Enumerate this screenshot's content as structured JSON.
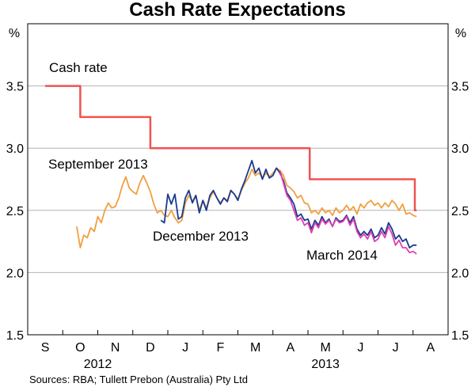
{
  "chart_data": {
    "type": "line",
    "title": "Cash Rate Expectations",
    "ylabel_left": "%",
    "ylabel_right": "%",
    "ylim": [
      1.5,
      4.0
    ],
    "yticks": [
      "1.5",
      "2.0",
      "2.5",
      "3.0",
      "3.5"
    ],
    "x_months": [
      "S",
      "O",
      "N",
      "D",
      "J",
      "F",
      "M",
      "A",
      "M",
      "J",
      "J",
      "A"
    ],
    "x_years": [
      {
        "label": "2012",
        "month_index": 1.5
      },
      {
        "label": "2013",
        "month_index": 8.0
      }
    ],
    "grid": true,
    "source": "Sources: RBA; Tullett Prebon (Australia) Pty Ltd",
    "series": [
      {
        "name": "Cash rate",
        "color": "#ef5350",
        "step": true,
        "points": [
          [
            0.0,
            3.5
          ],
          [
            1.0,
            3.5
          ],
          [
            1.0,
            3.25
          ],
          [
            3.0,
            3.25
          ],
          [
            3.0,
            3.0
          ],
          [
            7.55,
            3.0
          ],
          [
            7.55,
            2.75
          ],
          [
            10.55,
            2.75
          ],
          [
            10.55,
            2.5
          ],
          [
            10.6,
            2.5
          ]
        ]
      },
      {
        "name": "September 2013",
        "color": "#f0a040",
        "points": [
          [
            0.9,
            2.37
          ],
          [
            1.0,
            2.2
          ],
          [
            1.1,
            2.3
          ],
          [
            1.2,
            2.28
          ],
          [
            1.3,
            2.36
          ],
          [
            1.4,
            2.33
          ],
          [
            1.5,
            2.45
          ],
          [
            1.6,
            2.4
          ],
          [
            1.7,
            2.5
          ],
          [
            1.8,
            2.56
          ],
          [
            1.9,
            2.52
          ],
          [
            2.0,
            2.53
          ],
          [
            2.1,
            2.6
          ],
          [
            2.2,
            2.7
          ],
          [
            2.3,
            2.77
          ],
          [
            2.4,
            2.68
          ],
          [
            2.5,
            2.65
          ],
          [
            2.6,
            2.63
          ],
          [
            2.7,
            2.72
          ],
          [
            2.8,
            2.78
          ],
          [
            2.9,
            2.72
          ],
          [
            3.0,
            2.65
          ],
          [
            3.1,
            2.55
          ],
          [
            3.2,
            2.48
          ],
          [
            3.3,
            2.5
          ],
          [
            3.4,
            2.46
          ],
          [
            3.5,
            2.45
          ],
          [
            3.6,
            2.5
          ],
          [
            3.7,
            2.44
          ],
          [
            3.8,
            2.4
          ],
          [
            3.9,
            2.42
          ],
          [
            4.0,
            2.56
          ],
          [
            4.1,
            2.62
          ],
          [
            4.2,
            2.57
          ],
          [
            4.3,
            2.62
          ],
          [
            4.4,
            2.5
          ],
          [
            4.5,
            2.58
          ],
          [
            4.6,
            2.52
          ],
          [
            4.7,
            2.6
          ],
          [
            4.8,
            2.65
          ],
          [
            4.9,
            2.6
          ],
          [
            5.0,
            2.56
          ],
          [
            5.1,
            2.6
          ],
          [
            5.2,
            2.58
          ],
          [
            5.3,
            2.66
          ],
          [
            5.4,
            2.63
          ],
          [
            5.5,
            2.59
          ],
          [
            5.6,
            2.66
          ],
          [
            5.7,
            2.72
          ],
          [
            5.8,
            2.76
          ],
          [
            5.9,
            2.83
          ],
          [
            6.0,
            2.78
          ],
          [
            6.1,
            2.8
          ],
          [
            6.2,
            2.76
          ],
          [
            6.3,
            2.8
          ],
          [
            6.4,
            2.77
          ],
          [
            6.5,
            2.8
          ],
          [
            6.6,
            2.84
          ],
          [
            6.7,
            2.82
          ],
          [
            6.8,
            2.78
          ],
          [
            6.9,
            2.7
          ],
          [
            7.0,
            2.68
          ],
          [
            7.1,
            2.65
          ],
          [
            7.2,
            2.6
          ],
          [
            7.3,
            2.62
          ],
          [
            7.4,
            2.56
          ],
          [
            7.5,
            2.55
          ],
          [
            7.6,
            2.48
          ],
          [
            7.7,
            2.5
          ],
          [
            7.8,
            2.47
          ],
          [
            7.9,
            2.52
          ],
          [
            8.0,
            2.48
          ],
          [
            8.1,
            2.5
          ],
          [
            8.2,
            2.46
          ],
          [
            8.3,
            2.52
          ],
          [
            8.4,
            2.48
          ],
          [
            8.5,
            2.5
          ],
          [
            8.6,
            2.54
          ],
          [
            8.7,
            2.5
          ],
          [
            8.8,
            2.53
          ],
          [
            8.9,
            2.47
          ],
          [
            9.0,
            2.55
          ],
          [
            9.1,
            2.52
          ],
          [
            9.2,
            2.56
          ],
          [
            9.3,
            2.58
          ],
          [
            9.4,
            2.54
          ],
          [
            9.5,
            2.56
          ],
          [
            9.6,
            2.52
          ],
          [
            9.7,
            2.56
          ],
          [
            9.8,
            2.53
          ],
          [
            9.9,
            2.58
          ],
          [
            10.0,
            2.55
          ],
          [
            10.1,
            2.5
          ],
          [
            10.2,
            2.55
          ],
          [
            10.3,
            2.47
          ],
          [
            10.4,
            2.48
          ],
          [
            10.5,
            2.46
          ],
          [
            10.6,
            2.45
          ]
        ]
      },
      {
        "name": "December 2013",
        "color": "#1a3a8f",
        "points": [
          [
            3.3,
            2.42
          ],
          [
            3.4,
            2.4
          ],
          [
            3.5,
            2.63
          ],
          [
            3.6,
            2.55
          ],
          [
            3.7,
            2.63
          ],
          [
            3.8,
            2.43
          ],
          [
            3.9,
            2.45
          ],
          [
            4.0,
            2.6
          ],
          [
            4.1,
            2.66
          ],
          [
            4.2,
            2.56
          ],
          [
            4.3,
            2.62
          ],
          [
            4.4,
            2.48
          ],
          [
            4.5,
            2.58
          ],
          [
            4.6,
            2.5
          ],
          [
            4.7,
            2.62
          ],
          [
            4.8,
            2.66
          ],
          [
            4.9,
            2.6
          ],
          [
            5.0,
            2.55
          ],
          [
            5.1,
            2.6
          ],
          [
            5.2,
            2.57
          ],
          [
            5.3,
            2.66
          ],
          [
            5.4,
            2.63
          ],
          [
            5.5,
            2.58
          ],
          [
            5.6,
            2.67
          ],
          [
            5.7,
            2.74
          ],
          [
            5.8,
            2.82
          ],
          [
            5.9,
            2.9
          ],
          [
            6.0,
            2.8
          ],
          [
            6.1,
            2.84
          ],
          [
            6.2,
            2.75
          ],
          [
            6.3,
            2.83
          ],
          [
            6.4,
            2.76
          ],
          [
            6.5,
            2.78
          ],
          [
            6.6,
            2.84
          ],
          [
            6.7,
            2.8
          ],
          [
            6.8,
            2.74
          ],
          [
            6.9,
            2.64
          ],
          [
            7.0,
            2.6
          ],
          [
            7.1,
            2.55
          ],
          [
            7.2,
            2.45
          ],
          [
            7.3,
            2.47
          ],
          [
            7.4,
            2.42
          ],
          [
            7.5,
            2.43
          ],
          [
            7.6,
            2.35
          ],
          [
            7.7,
            2.42
          ],
          [
            7.8,
            2.38
          ],
          [
            7.9,
            2.45
          ],
          [
            8.0,
            2.4
          ],
          [
            8.1,
            2.43
          ],
          [
            8.2,
            2.37
          ],
          [
            8.3,
            2.44
          ],
          [
            8.4,
            2.41
          ],
          [
            8.5,
            2.42
          ],
          [
            8.6,
            2.46
          ],
          [
            8.7,
            2.4
          ],
          [
            8.8,
            2.45
          ],
          [
            8.9,
            2.35
          ],
          [
            9.0,
            2.3
          ],
          [
            9.1,
            2.33
          ],
          [
            9.2,
            2.3
          ],
          [
            9.3,
            2.35
          ],
          [
            9.4,
            2.28
          ],
          [
            9.5,
            2.3
          ],
          [
            9.6,
            2.36
          ],
          [
            9.7,
            2.31
          ],
          [
            9.8,
            2.4
          ],
          [
            9.9,
            2.35
          ],
          [
            10.0,
            2.27
          ],
          [
            10.1,
            2.3
          ],
          [
            10.2,
            2.25
          ],
          [
            10.3,
            2.27
          ],
          [
            10.4,
            2.2
          ],
          [
            10.5,
            2.22
          ],
          [
            10.6,
            2.22
          ]
        ]
      },
      {
        "name": "March 2014",
        "color": "#e040b0",
        "points": [
          [
            6.7,
            2.82
          ],
          [
            6.8,
            2.72
          ],
          [
            6.9,
            2.62
          ],
          [
            7.0,
            2.58
          ],
          [
            7.1,
            2.5
          ],
          [
            7.2,
            2.42
          ],
          [
            7.3,
            2.44
          ],
          [
            7.4,
            2.38
          ],
          [
            7.5,
            2.4
          ],
          [
            7.6,
            2.32
          ],
          [
            7.7,
            2.4
          ],
          [
            7.8,
            2.36
          ],
          [
            7.9,
            2.43
          ],
          [
            8.0,
            2.39
          ],
          [
            8.1,
            2.42
          ],
          [
            8.2,
            2.37
          ],
          [
            8.3,
            2.43
          ],
          [
            8.4,
            2.4
          ],
          [
            8.5,
            2.41
          ],
          [
            8.6,
            2.45
          ],
          [
            8.7,
            2.38
          ],
          [
            8.8,
            2.43
          ],
          [
            8.9,
            2.33
          ],
          [
            9.0,
            2.28
          ],
          [
            9.1,
            2.31
          ],
          [
            9.2,
            2.27
          ],
          [
            9.3,
            2.33
          ],
          [
            9.4,
            2.25
          ],
          [
            9.5,
            2.27
          ],
          [
            9.6,
            2.33
          ],
          [
            9.7,
            2.28
          ],
          [
            9.8,
            2.37
          ],
          [
            9.9,
            2.31
          ],
          [
            10.0,
            2.22
          ],
          [
            10.1,
            2.26
          ],
          [
            10.2,
            2.2
          ],
          [
            10.3,
            2.2
          ],
          [
            10.4,
            2.16
          ],
          [
            10.5,
            2.17
          ],
          [
            10.6,
            2.15
          ]
        ]
      }
    ],
    "annotations": [
      {
        "text": "Cash rate",
        "series": "Cash rate"
      },
      {
        "text": "September 2013",
        "series": "September 2013"
      },
      {
        "text": "December 2013",
        "series": "December 2013"
      },
      {
        "text": "March 2014",
        "series": "March 2014"
      }
    ]
  }
}
